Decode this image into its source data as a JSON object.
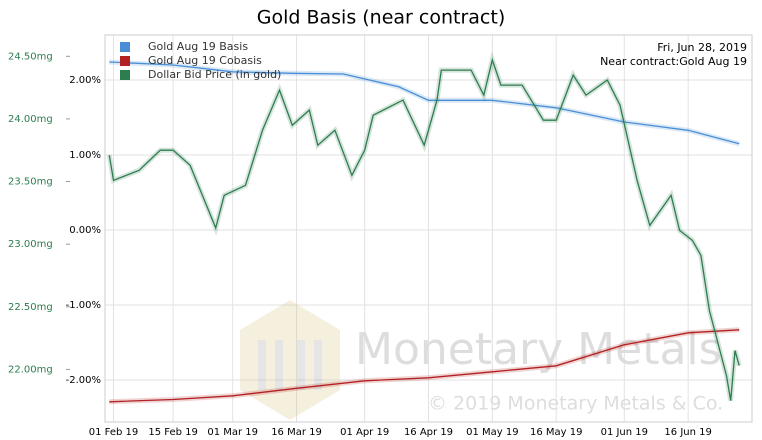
{
  "chart_data": {
    "type": "line",
    "title": "Gold Basis (near contract)",
    "date_label": "Fri, Jun 28, 2019",
    "contract_label": "Near contract:Gold Aug 19",
    "watermark": "Monetary Metals",
    "copyright": "© 2019 Monetary Metals & Co.",
    "xlim": [
      "2019-01-30",
      "2019-07-01"
    ],
    "xticks": [
      {
        "value": "2019-02-01",
        "label": "01 Feb 19"
      },
      {
        "value": "2019-02-15",
        "label": "15 Feb 19"
      },
      {
        "value": "2019-03-01",
        "label": "01 Mar 19"
      },
      {
        "value": "2019-03-16",
        "label": "16 Mar 19"
      },
      {
        "value": "2019-04-01",
        "label": "01 Apr 19"
      },
      {
        "value": "2019-04-16",
        "label": "16 Apr 19"
      },
      {
        "value": "2019-05-01",
        "label": "01 May 19"
      },
      {
        "value": "2019-05-16",
        "label": "16 May 19"
      },
      {
        "value": "2019-06-01",
        "label": "01 Jun 19"
      },
      {
        "value": "2019-06-16",
        "label": "16 Jun 19"
      }
    ],
    "ylim": [
      -2.56,
      2.6
    ],
    "yticks": [
      {
        "value": 2,
        "label": "2.00%"
      },
      {
        "value": 1,
        "label": "1.00%"
      },
      {
        "value": 0,
        "label": "0.00%"
      },
      {
        "value": -1,
        "label": "-1.00%"
      },
      {
        "value": -2,
        "label": "-2.00%"
      }
    ],
    "y2lim": [
      21.58,
      24.67
    ],
    "y2ticks": [
      {
        "value": 24.5,
        "label": "24.50mg"
      },
      {
        "value": 24,
        "label": "24.00mg"
      },
      {
        "value": 23.5,
        "label": "23.50mg"
      },
      {
        "value": 23,
        "label": "23.00mg"
      },
      {
        "value": 22.5,
        "label": "22.50mg"
      },
      {
        "value": 22,
        "label": "22.00mg"
      }
    ],
    "grid": true,
    "legend": "top-left",
    "series": [
      {
        "name": "Gold Aug 19 Basis",
        "color": "#4a8fd6",
        "x": [
          "2019-01-31",
          "2019-02-15",
          "2019-03-01",
          "2019-03-15",
          "2019-03-27",
          "2019-04-09",
          "2019-04-16",
          "2019-05-01",
          "2019-05-16",
          "2019-06-01",
          "2019-06-16",
          "2019-06-28"
        ],
        "values": [
          2.24,
          2.2,
          2.11,
          2.09,
          2.08,
          1.91,
          1.73,
          1.73,
          1.63,
          1.44,
          1.33,
          1.15
        ]
      },
      {
        "name": "Gold Aug 19 Cobasis",
        "color": "#b22222",
        "x": [
          "2019-01-31",
          "2019-02-15",
          "2019-03-01",
          "2019-03-16",
          "2019-04-01",
          "2019-04-16",
          "2019-05-01",
          "2019-05-16",
          "2019-06-01",
          "2019-06-16",
          "2019-06-28"
        ],
        "values": [
          -2.29,
          -2.26,
          -2.21,
          -2.11,
          -2.01,
          -1.97,
          -1.89,
          -1.81,
          -1.53,
          -1.37,
          -1.33
        ]
      },
      {
        "name": "Dollar Bid Price (in gold)",
        "color": "#2e7d4f",
        "axis": "y2",
        "x": [
          "2019-01-31",
          "2019-02-01",
          "2019-02-07",
          "2019-02-12",
          "2019-02-15",
          "2019-02-19",
          "2019-02-25",
          "2019-02-27",
          "2019-03-04",
          "2019-03-08",
          "2019-03-12",
          "2019-03-15",
          "2019-03-19",
          "2019-03-21",
          "2019-03-25",
          "2019-03-29",
          "2019-04-01",
          "2019-04-03",
          "2019-04-10",
          "2019-04-15",
          "2019-04-18",
          "2019-04-19",
          "2019-04-26",
          "2019-04-29",
          "2019-05-01",
          "2019-05-03",
          "2019-05-08",
          "2019-05-13",
          "2019-05-16",
          "2019-05-20",
          "2019-05-23",
          "2019-05-28",
          "2019-05-31",
          "2019-06-04",
          "2019-06-07",
          "2019-06-12",
          "2019-06-14",
          "2019-06-17",
          "2019-06-19",
          "2019-06-21",
          "2019-06-25",
          "2019-06-26",
          "2019-06-27",
          "2019-06-28"
        ],
        "values": [
          23.71,
          23.51,
          23.59,
          23.75,
          23.75,
          23.63,
          23.13,
          23.39,
          23.47,
          23.91,
          24.23,
          23.95,
          24.07,
          23.79,
          23.91,
          23.55,
          23.75,
          24.03,
          24.15,
          23.79,
          24.15,
          24.39,
          24.39,
          24.19,
          24.47,
          24.27,
          24.27,
          23.99,
          23.99,
          24.35,
          24.19,
          24.31,
          24.11,
          23.51,
          23.15,
          23.39,
          23.11,
          23.03,
          22.91,
          22.47,
          21.95,
          21.75,
          22.15,
          22.03
        ]
      }
    ]
  }
}
